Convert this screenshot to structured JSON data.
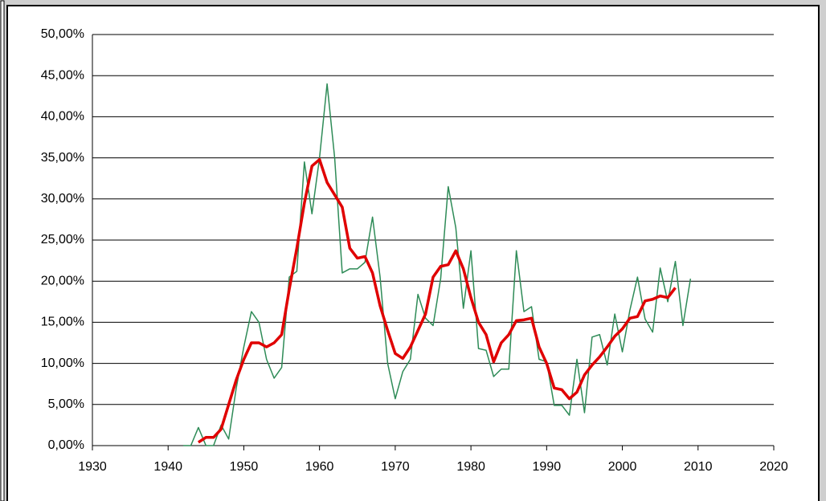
{
  "chart_data": {
    "type": "line",
    "x": [
      1942,
      1943,
      1944,
      1945,
      1946,
      1947,
      1948,
      1949,
      1950,
      1951,
      1952,
      1953,
      1954,
      1955,
      1956,
      1957,
      1958,
      1959,
      1960,
      1961,
      1962,
      1963,
      1964,
      1965,
      1966,
      1967,
      1968,
      1969,
      1970,
      1971,
      1972,
      1973,
      1974,
      1975,
      1976,
      1977,
      1978,
      1979,
      1980,
      1981,
      1982,
      1983,
      1984,
      1985,
      1986,
      1987,
      1988,
      1989,
      1990,
      1991,
      1992,
      1993,
      1994,
      1995,
      1996,
      1997,
      1998,
      1999,
      2000,
      2001,
      2002,
      2003,
      2004,
      2005,
      2006,
      2007,
      2008,
      2009
    ],
    "series": [
      {
        "color": "#2e8b57",
        "width": 1.5,
        "values": [
          0,
          0,
          2.2,
          0,
          0,
          2.5,
          0.8,
          7,
          12,
          16.3,
          15,
          10.5,
          8.2,
          9.5,
          20.5,
          21.2,
          34.5,
          28.2,
          35,
          44,
          35,
          21,
          21.5,
          21.5,
          22.3,
          27.8,
          20.5,
          10,
          5.7,
          9,
          10.5,
          18.4,
          15.5,
          14.6,
          20.3,
          31.5,
          26.5,
          16.7,
          23.7,
          11.8,
          11.6,
          8.4,
          9.3,
          9.3,
          23.7,
          16.3,
          16.9,
          10.5,
          10.2,
          4.9,
          4.9,
          3.7,
          10.5,
          4,
          13.2,
          13.5,
          9.8,
          16,
          11.4,
          16.5,
          20.5,
          15.4,
          13.8,
          21.6,
          17.5,
          22.4,
          14.6,
          20.3
        ]
      },
      {
        "color": "#e00000",
        "width": 3.5,
        "values": [
          null,
          null,
          0.4,
          1,
          1,
          2,
          5,
          8,
          10.5,
          12.5,
          12.5,
          12,
          12.5,
          13.5,
          19,
          24,
          29.5,
          34,
          34.8,
          32,
          30.5,
          29,
          24,
          22.8,
          23,
          21,
          17,
          14,
          11.2,
          10.6,
          12,
          14,
          16,
          20.5,
          21.8,
          22,
          23.7,
          21.5,
          18,
          15,
          13.5,
          10.2,
          12.5,
          13.5,
          15.2,
          15.3,
          15.5,
          12,
          10,
          7,
          6.8,
          5.7,
          6.5,
          8.6,
          9.8,
          10.8,
          12,
          13.3,
          14.2,
          15.5,
          15.7,
          17.6,
          17.8,
          18.2,
          18,
          19.2,
          null,
          null
        ]
      }
    ],
    "xlim": [
      1930,
      2020
    ],
    "xticks": [
      1930,
      1940,
      1950,
      1960,
      1970,
      1980,
      1990,
      2000,
      2010,
      2020
    ],
    "ylim": [
      0,
      50
    ],
    "yticks": [
      {
        "value": 0,
        "label": "0,00%"
      },
      {
        "value": 5,
        "label": "5,00%"
      },
      {
        "value": 10,
        "label": "10,00%"
      },
      {
        "value": 15,
        "label": "15,00%"
      },
      {
        "value": 20,
        "label": "20,00%"
      },
      {
        "value": 25,
        "label": "25,00%"
      },
      {
        "value": 30,
        "label": "30,00%"
      },
      {
        "value": 35,
        "label": "35,00%"
      },
      {
        "value": 40,
        "label": "40,00%"
      },
      {
        "value": 45,
        "label": "45,00%"
      },
      {
        "value": 50,
        "label": "50,00%"
      }
    ],
    "grid": true
  }
}
